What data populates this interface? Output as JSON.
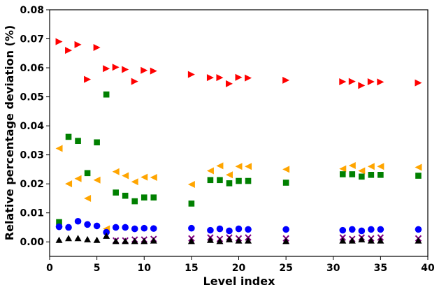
{
  "chart_data": {
    "type": "scatter",
    "title": "",
    "xlabel": "Level index",
    "ylabel": "Relative percentage deviation (%)",
    "xlim": [
      0,
      40
    ],
    "ylim": [
      -0.005,
      0.08
    ],
    "xticks": [
      0,
      5,
      10,
      15,
      20,
      25,
      30,
      35,
      40
    ],
    "yticks": [
      0.0,
      0.01,
      0.02,
      0.03,
      0.04,
      0.05,
      0.06,
      0.07,
      0.08
    ],
    "xtick_labels": [
      "0",
      "5",
      "10",
      "15",
      "20",
      "25",
      "30",
      "35",
      "40"
    ],
    "ytick_labels": [
      "0.00",
      "0.01",
      "0.02",
      "0.03",
      "0.04",
      "0.05",
      "0.06",
      "0.07",
      "0.08"
    ],
    "grid": false,
    "legend": false,
    "series": [
      {
        "marker": "triangle-right",
        "color": "#ff0000",
        "points": [
          [
            1,
            0.069
          ],
          [
            2,
            0.066
          ],
          [
            3,
            0.068
          ],
          [
            4,
            0.056
          ],
          [
            5,
            0.067
          ],
          [
            6,
            0.0597
          ],
          [
            7,
            0.0602
          ],
          [
            8,
            0.0594
          ],
          [
            9,
            0.0553
          ],
          [
            10,
            0.0591
          ],
          [
            11,
            0.0589
          ],
          [
            15,
            0.0577
          ],
          [
            17,
            0.0566
          ],
          [
            18,
            0.0566
          ],
          [
            19,
            0.0545
          ],
          [
            20,
            0.0567
          ],
          [
            21,
            0.0565
          ],
          [
            25,
            0.0557
          ],
          [
            31,
            0.0552
          ],
          [
            32,
            0.0553
          ],
          [
            33,
            0.0539
          ],
          [
            34,
            0.0552
          ],
          [
            35,
            0.0551
          ],
          [
            39,
            0.0548
          ]
        ]
      },
      {
        "marker": "triangle-left",
        "color": "#ffa500",
        "points": [
          [
            1,
            0.0322
          ],
          [
            2,
            0.02
          ],
          [
            3,
            0.0218
          ],
          [
            4,
            0.015
          ],
          [
            5,
            0.0213
          ],
          [
            6,
            0.0045
          ],
          [
            7,
            0.0242
          ],
          [
            8,
            0.0228
          ],
          [
            9,
            0.0207
          ],
          [
            10,
            0.0223
          ],
          [
            11,
            0.0222
          ],
          [
            15,
            0.0198
          ],
          [
            17,
            0.0245
          ],
          [
            18,
            0.0262
          ],
          [
            19,
            0.0231
          ],
          [
            20,
            0.026
          ],
          [
            21,
            0.026
          ],
          [
            25,
            0.025
          ],
          [
            31,
            0.0252
          ],
          [
            32,
            0.0263
          ],
          [
            33,
            0.0245
          ],
          [
            34,
            0.026
          ],
          [
            35,
            0.026
          ],
          [
            39,
            0.0257
          ]
        ]
      },
      {
        "marker": "square",
        "color": "#008000",
        "points": [
          [
            1,
            0.0068
          ],
          [
            2,
            0.0362
          ],
          [
            3,
            0.0348
          ],
          [
            4,
            0.0237
          ],
          [
            5,
            0.0343
          ],
          [
            6,
            0.0508
          ],
          [
            7,
            0.017
          ],
          [
            8,
            0.0159
          ],
          [
            9,
            0.014
          ],
          [
            10,
            0.0153
          ],
          [
            11,
            0.0153
          ],
          [
            15,
            0.0132
          ],
          [
            17,
            0.0213
          ],
          [
            18,
            0.0213
          ],
          [
            19,
            0.0202
          ],
          [
            20,
            0.021
          ],
          [
            21,
            0.021
          ],
          [
            25,
            0.0204
          ],
          [
            31,
            0.0233
          ],
          [
            32,
            0.0233
          ],
          [
            33,
            0.0225
          ],
          [
            34,
            0.0231
          ],
          [
            35,
            0.0231
          ],
          [
            39,
            0.0228
          ]
        ]
      },
      {
        "marker": "circle",
        "color": "#0000ff",
        "points": [
          [
            1,
            0.0052
          ],
          [
            2,
            0.005
          ],
          [
            3,
            0.0071
          ],
          [
            4,
            0.006
          ],
          [
            5,
            0.0055
          ],
          [
            6,
            0.0033
          ],
          [
            7,
            0.005
          ],
          [
            8,
            0.005
          ],
          [
            9,
            0.0045
          ],
          [
            10,
            0.0047
          ],
          [
            11,
            0.0046
          ],
          [
            15,
            0.0047
          ],
          [
            17,
            0.004
          ],
          [
            18,
            0.0045
          ],
          [
            19,
            0.0038
          ],
          [
            20,
            0.0045
          ],
          [
            21,
            0.0043
          ],
          [
            25,
            0.0043
          ],
          [
            31,
            0.004
          ],
          [
            32,
            0.0043
          ],
          [
            33,
            0.0038
          ],
          [
            34,
            0.0043
          ],
          [
            35,
            0.0043
          ],
          [
            39,
            0.0043
          ]
        ]
      },
      {
        "marker": "x",
        "color": "#800080",
        "points": [
          [
            7,
            0.0005
          ],
          [
            8,
            0.0005
          ],
          [
            9,
            0.0008
          ],
          [
            10,
            0.0008
          ],
          [
            11,
            0.001
          ],
          [
            15,
            0.0012
          ],
          [
            17,
            0.0015
          ],
          [
            18,
            0.001
          ],
          [
            19,
            0.0015
          ],
          [
            20,
            0.0012
          ],
          [
            21,
            0.0015
          ],
          [
            25,
            0.0012
          ],
          [
            31,
            0.0015
          ],
          [
            32,
            0.001
          ],
          [
            33,
            0.0015
          ],
          [
            34,
            0.0012
          ],
          [
            35,
            0.0015
          ],
          [
            39,
            0.0012
          ]
        ]
      },
      {
        "marker": "triangle-up",
        "color": "#000000",
        "points": [
          [
            1,
            0.0006
          ],
          [
            2,
            0.0012
          ],
          [
            3,
            0.0012
          ],
          [
            4,
            0.0008
          ],
          [
            5,
            0.0006
          ],
          [
            6,
            0.002
          ],
          [
            7,
            0.0002
          ],
          [
            8,
            0.0002
          ],
          [
            9,
            0.0002
          ],
          [
            10,
            0.0002
          ],
          [
            11,
            0.0004
          ],
          [
            15,
            0.0002
          ],
          [
            17,
            0.0006
          ],
          [
            18,
            0.0002
          ],
          [
            19,
            0.0008
          ],
          [
            20,
            0.0004
          ],
          [
            21,
            0.0004
          ],
          [
            25,
            0.0002
          ],
          [
            31,
            0.0004
          ],
          [
            32,
            0.0004
          ],
          [
            33,
            0.0008
          ],
          [
            34,
            0.0004
          ],
          [
            35,
            0.0004
          ],
          [
            39,
            0.0004
          ]
        ]
      }
    ]
  }
}
